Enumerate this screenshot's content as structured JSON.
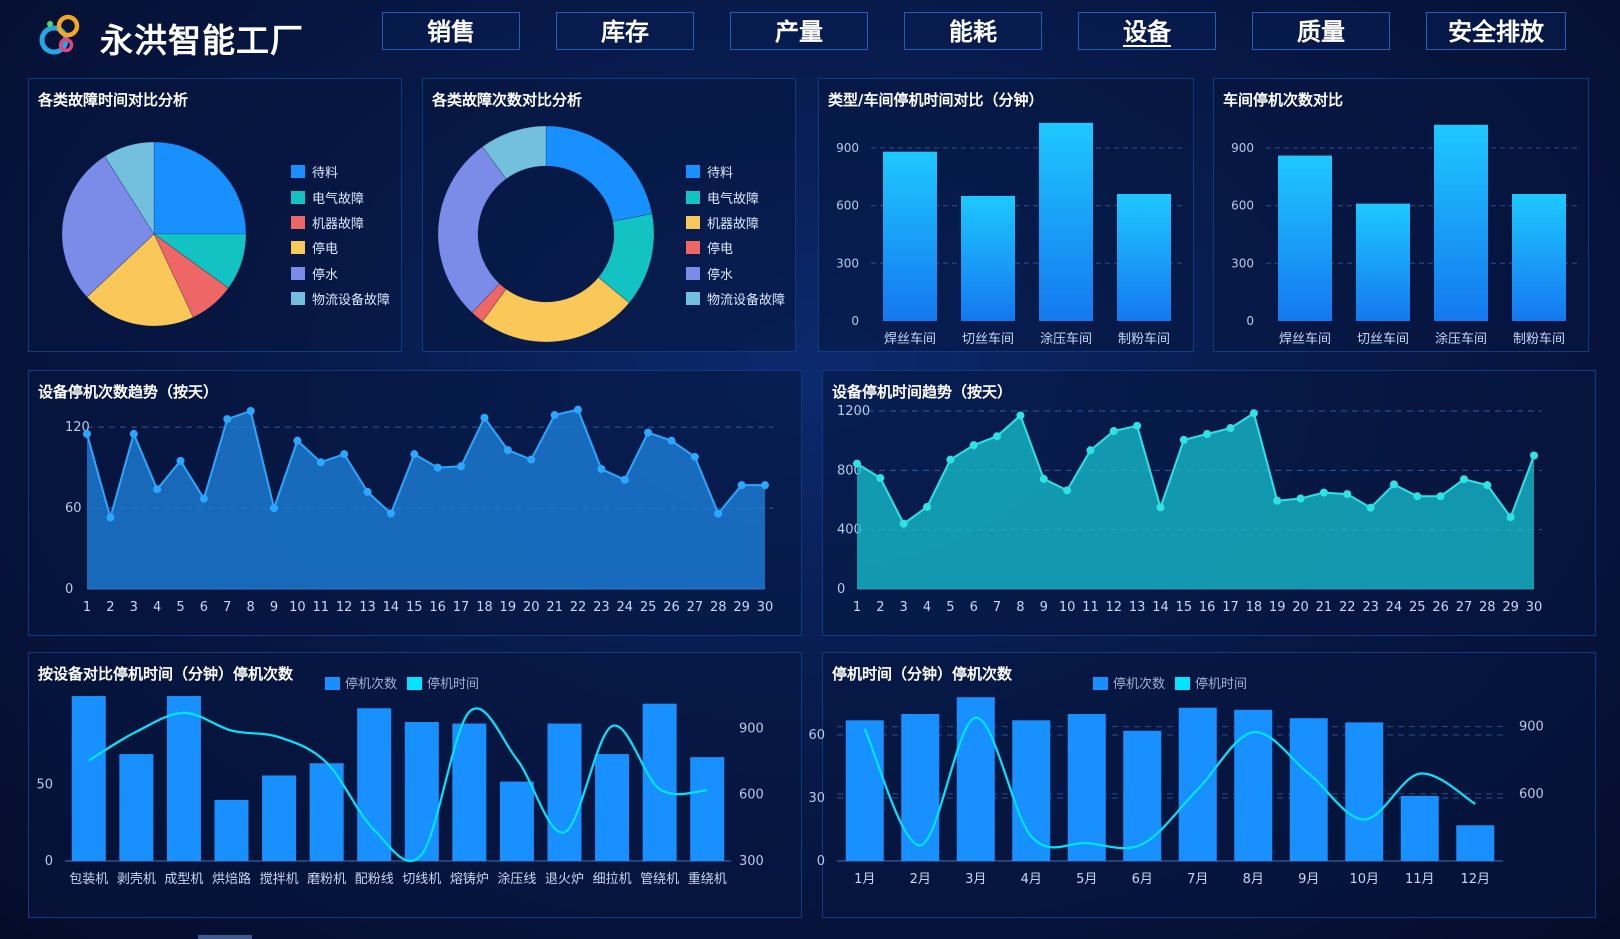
{
  "app": {
    "title": "永洪智能工厂"
  },
  "nav": {
    "tabs": [
      "销售",
      "库存",
      "产量",
      "能耗",
      "设备",
      "质量",
      "安全排放"
    ],
    "active": "设备"
  },
  "colors": {
    "blue": "#1890ff",
    "cyan": "#13c2c2",
    "red": "#ee6666",
    "yellow": "#fac858",
    "purple": "#7b8ce8",
    "teal": "#73c0de",
    "neon": "#00e5ff",
    "bar_top": "#1ec8ff",
    "bar_bottom": "#1478f0"
  },
  "panels": {
    "pie1": {
      "title": "各类故障时间对比分析"
    },
    "pie2": {
      "title": "各类故障次数对比分析"
    },
    "bar1": {
      "title": "类型/车间停机时间对比（分钟）"
    },
    "bar2": {
      "title": "车间停机次数对比"
    },
    "area1": {
      "title": "设备停机次数趋势（按天）"
    },
    "area2": {
      "title": "设备停机时间趋势（按天）"
    },
    "combo1": {
      "title": "按设备对比停机时间（分钟）停机次数"
    },
    "combo2": {
      "title": "停机时间（分钟）停机次数"
    }
  },
  "chart_data": [
    {
      "id": "pie1",
      "type": "pie",
      "categories": [
        "待料",
        "电气故障",
        "机器故障",
        "停电",
        "停水",
        "物流设备故障"
      ],
      "values": [
        25,
        10,
        8,
        20,
        28,
        9
      ],
      "colors": [
        "#1890ff",
        "#13c2c2",
        "#ee6666",
        "#fac858",
        "#7b8ce8",
        "#73c0de"
      ],
      "legend": "right"
    },
    {
      "id": "pie2",
      "type": "pie",
      "donut": true,
      "categories": [
        "待料",
        "电气故障",
        "机器故障",
        "停电",
        "停水",
        "物流设备故障"
      ],
      "values": [
        22,
        14,
        24,
        2,
        28,
        10
      ],
      "colors": [
        "#1890ff",
        "#13c2c2",
        "#fac858",
        "#ee6666",
        "#7b8ce8",
        "#73c0de"
      ],
      "legend": "right"
    },
    {
      "id": "bar1",
      "type": "bar",
      "categories": [
        "焊丝车间",
        "切丝车间",
        "涂压车间",
        "制粉车间"
      ],
      "values": [
        880,
        650,
        1030,
        660
      ],
      "yticks": [
        0,
        300,
        600,
        900
      ],
      "ylim": [
        0,
        1050
      ]
    },
    {
      "id": "bar2",
      "type": "bar",
      "categories": [
        "焊丝车间",
        "切丝车间",
        "涂压车间",
        "制粉车间"
      ],
      "values": [
        860,
        610,
        1020,
        660
      ],
      "yticks": [
        0,
        300,
        600,
        900
      ],
      "ylim": [
        0,
        1050
      ]
    },
    {
      "id": "area1",
      "type": "area",
      "x": [
        1,
        2,
        3,
        4,
        5,
        6,
        7,
        8,
        9,
        10,
        11,
        12,
        13,
        14,
        15,
        16,
        17,
        18,
        19,
        20,
        21,
        22,
        23,
        24,
        25,
        26,
        27,
        28,
        29,
        30
      ],
      "values": [
        115,
        53,
        115,
        74,
        95,
        67,
        126,
        132,
        60,
        110,
        94,
        100,
        72,
        56,
        100,
        90,
        91,
        127,
        103,
        96,
        129,
        133,
        89,
        81,
        116,
        110,
        98,
        56,
        77,
        77
      ],
      "yticks": [
        0,
        60,
        120
      ],
      "ylim": [
        0,
        132
      ]
    },
    {
      "id": "area2",
      "type": "area",
      "x": [
        1,
        2,
        3,
        4,
        5,
        6,
        7,
        8,
        9,
        10,
        11,
        12,
        13,
        14,
        15,
        16,
        17,
        18,
        19,
        20,
        21,
        22,
        23,
        24,
        25,
        26,
        27,
        28,
        29,
        30
      ],
      "values": [
        845,
        748,
        440,
        553,
        872,
        970,
        1030,
        1170,
        742,
        665,
        935,
        1065,
        1100,
        550,
        1005,
        1045,
        1085,
        1185,
        595,
        610,
        650,
        640,
        548,
        705,
        625,
        625,
        740,
        700,
        484,
        900
      ],
      "yticks": [
        0,
        400,
        800,
        1200
      ],
      "ylim": [
        0,
        1200
      ]
    },
    {
      "id": "combo1",
      "type": "bar+line",
      "legend": [
        "停机次数",
        "停机时间"
      ],
      "categories": [
        "包装机",
        "剥壳机",
        "成型机",
        "烘焙路",
        "搅拌机",
        "磨粉机",
        "配粉线",
        "切线机",
        "熔铸炉",
        "涂压线",
        "退火炉",
        "细拉机",
        "管绕机",
        "重绕机"
      ],
      "bar_values": [
        108,
        70,
        108,
        40,
        56,
        64,
        100,
        91,
        90,
        52,
        90,
        70,
        103,
        68
      ],
      "line_values": [
        755,
        885,
        970,
        890,
        860,
        745,
        440,
        330,
        975,
        760,
        430,
        910,
        625,
        620
      ],
      "left_ticks": [
        0,
        50
      ],
      "right_ticks": [
        300,
        600,
        900
      ],
      "left_lim": [
        0,
        110
      ],
      "right_lim": [
        300,
        1060
      ]
    },
    {
      "id": "combo2",
      "type": "bar+line",
      "legend": [
        "停机次数",
        "停机时间"
      ],
      "categories": [
        "1月",
        "2月",
        "3月",
        "4月",
        "5月",
        "6月",
        "7月",
        "8月",
        "9月",
        "10月",
        "11月",
        "12月"
      ],
      "bar_values": [
        67,
        70,
        78,
        67,
        70,
        62,
        73,
        72,
        68,
        66,
        31,
        17
      ],
      "line_values": [
        890,
        370,
        940,
        410,
        380,
        375,
        620,
        875,
        690,
        485,
        690,
        555
      ],
      "left_ticks": [
        0,
        30,
        60
      ],
      "right_ticks": [
        600,
        900
      ],
      "left_lim": [
        0,
        80
      ],
      "right_lim": [
        300,
        1050
      ]
    }
  ]
}
